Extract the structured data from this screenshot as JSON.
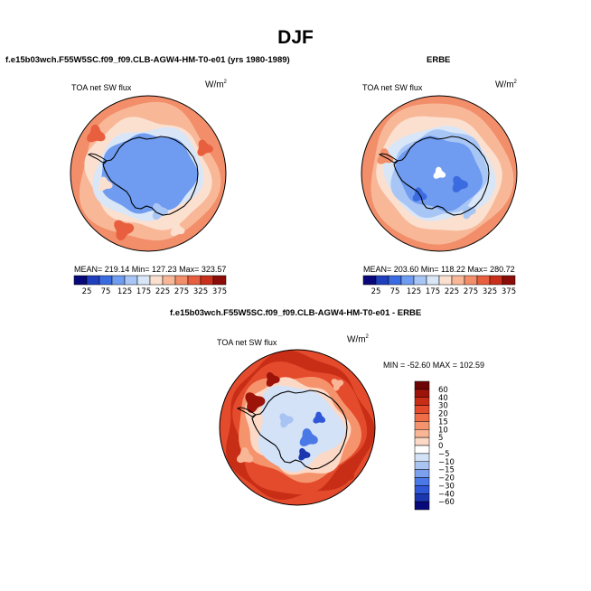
{
  "page": {
    "title": "DJF",
    "left_title": "f.e15b03wch.F55W5SC.f09_f09.CLB-AGW4-HM-T0-e01 (yrs 1980-1989)",
    "right_title": "ERBE",
    "diff_title": "f.e15b03wch.F55W5SC.f09_f09.CLB-AGW4-HM-T0-e01 - ERBE"
  },
  "colors": {
    "abs_scale": [
      "#08087a",
      "#1f3fbf",
      "#3a6be0",
      "#6f9bf0",
      "#a8c6f5",
      "#d8e6f7",
      "#fbe0d0",
      "#f8b898",
      "#f28e6a",
      "#e85f3f",
      "#c8301c",
      "#8c0c0a"
    ],
    "diff_scale": [
      "#08087a",
      "#1a37b0",
      "#2f57d8",
      "#4a78e6",
      "#7aa0ee",
      "#a9c3f3",
      "#d3e2f7",
      "#ffffff",
      "#fcd9c6",
      "#f9b696",
      "#f5936c",
      "#ef6d47",
      "#e44a2c",
      "#c82d16",
      "#9c130a",
      "#6e0505"
    ]
  },
  "chart_data": [
    {
      "type": "heatmap",
      "projection": "south-polar-stereographic",
      "title": "TOA net SW flux",
      "units": "W/m2",
      "units_base": "W/m",
      "units_exp": "2",
      "stats": {
        "mean": "219.14",
        "min": "127.23",
        "max": "323.57"
      },
      "stats_text": "MEAN= 219.14  Min= 127.23  Max= 323.57",
      "colorbar_levels": [
        25,
        75,
        125,
        175,
        225,
        275,
        325,
        375
      ],
      "colorbar_labels": [
        "25",
        "75",
        "125",
        "175",
        "225",
        "275",
        "325",
        "375"
      ]
    },
    {
      "type": "heatmap",
      "projection": "south-polar-stereographic",
      "title": "TOA net SW flux",
      "units": "W/m2",
      "units_base": "W/m",
      "units_exp": "2",
      "stats": {
        "mean": "203.60",
        "min": "118.22",
        "max": "280.72"
      },
      "stats_text": "MEAN= 203.60  Min= 118.22  Max= 280.72",
      "colorbar_levels": [
        25,
        75,
        125,
        175,
        225,
        275,
        325,
        375
      ],
      "colorbar_labels": [
        "25",
        "75",
        "125",
        "175",
        "225",
        "275",
        "325",
        "375"
      ]
    },
    {
      "type": "heatmap",
      "projection": "south-polar-stereographic",
      "title": "TOA net SW flux",
      "units": "W/m2",
      "units_base": "W/m",
      "units_exp": "2",
      "stats": {
        "min": "-52.60",
        "max": "102.59"
      },
      "stats_text": "MIN = -52.60 MAX = 102.59",
      "colorbar_levels": [
        60,
        40,
        30,
        20,
        15,
        10,
        5,
        0,
        -5,
        -10,
        -15,
        -20,
        -30,
        -40,
        -60
      ],
      "colorbar_labels": [
        "60",
        "40",
        "30",
        "20",
        "15",
        "10",
        "5",
        "0",
        "−5",
        "−10",
        "−15",
        "−20",
        "−30",
        "−40",
        "−60"
      ]
    }
  ]
}
